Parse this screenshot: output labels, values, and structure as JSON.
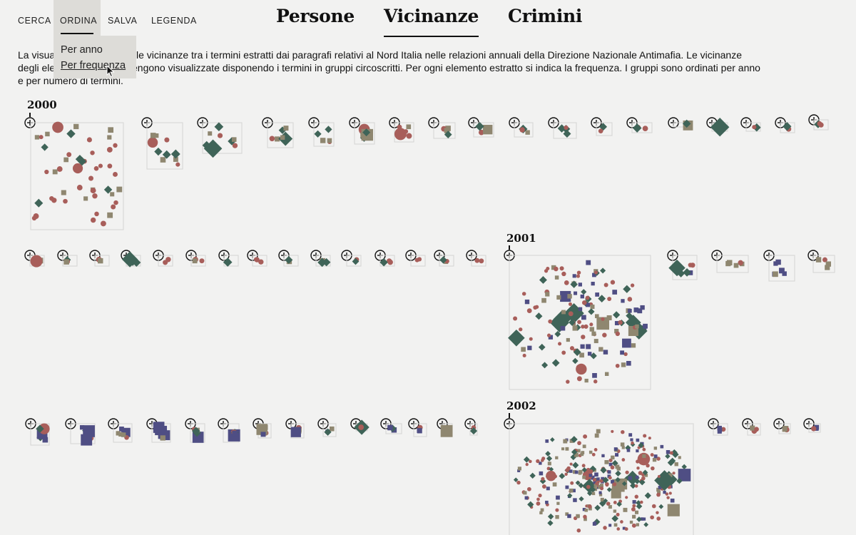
{
  "nav": {
    "items": [
      "CERCA",
      "ORDINA",
      "SALVA",
      "LEGENDA"
    ],
    "dropdown": [
      "Per anno",
      "Per frequenza"
    ]
  },
  "tabs": [
    "Persone",
    "Vicinanze",
    "Crimini"
  ],
  "intro": {
    "line1_a": "La visua",
    "line1_b": "le vicinanze tra i termini estratti dai paragrafi relativi al Nord Italia nelle relazioni annuali della Direzione Nazionale Antimafia. Le vicinanze",
    "line2_a": "degli ele",
    "line2_b": "engono visualizzate disponendo i termini in gruppi circoscritti. Per ogni elemento estratto si indica la frequenza. I gruppi sono ordinati per anno",
    "line3": "e per numero di termini."
  },
  "years": [
    "2000",
    "2001",
    "2002"
  ],
  "colors": {
    "red": "#a85e5a",
    "green": "#3f6458",
    "olive": "#8f8770",
    "blue": "#4f4e84",
    "box": "#d4d4d2"
  }
}
